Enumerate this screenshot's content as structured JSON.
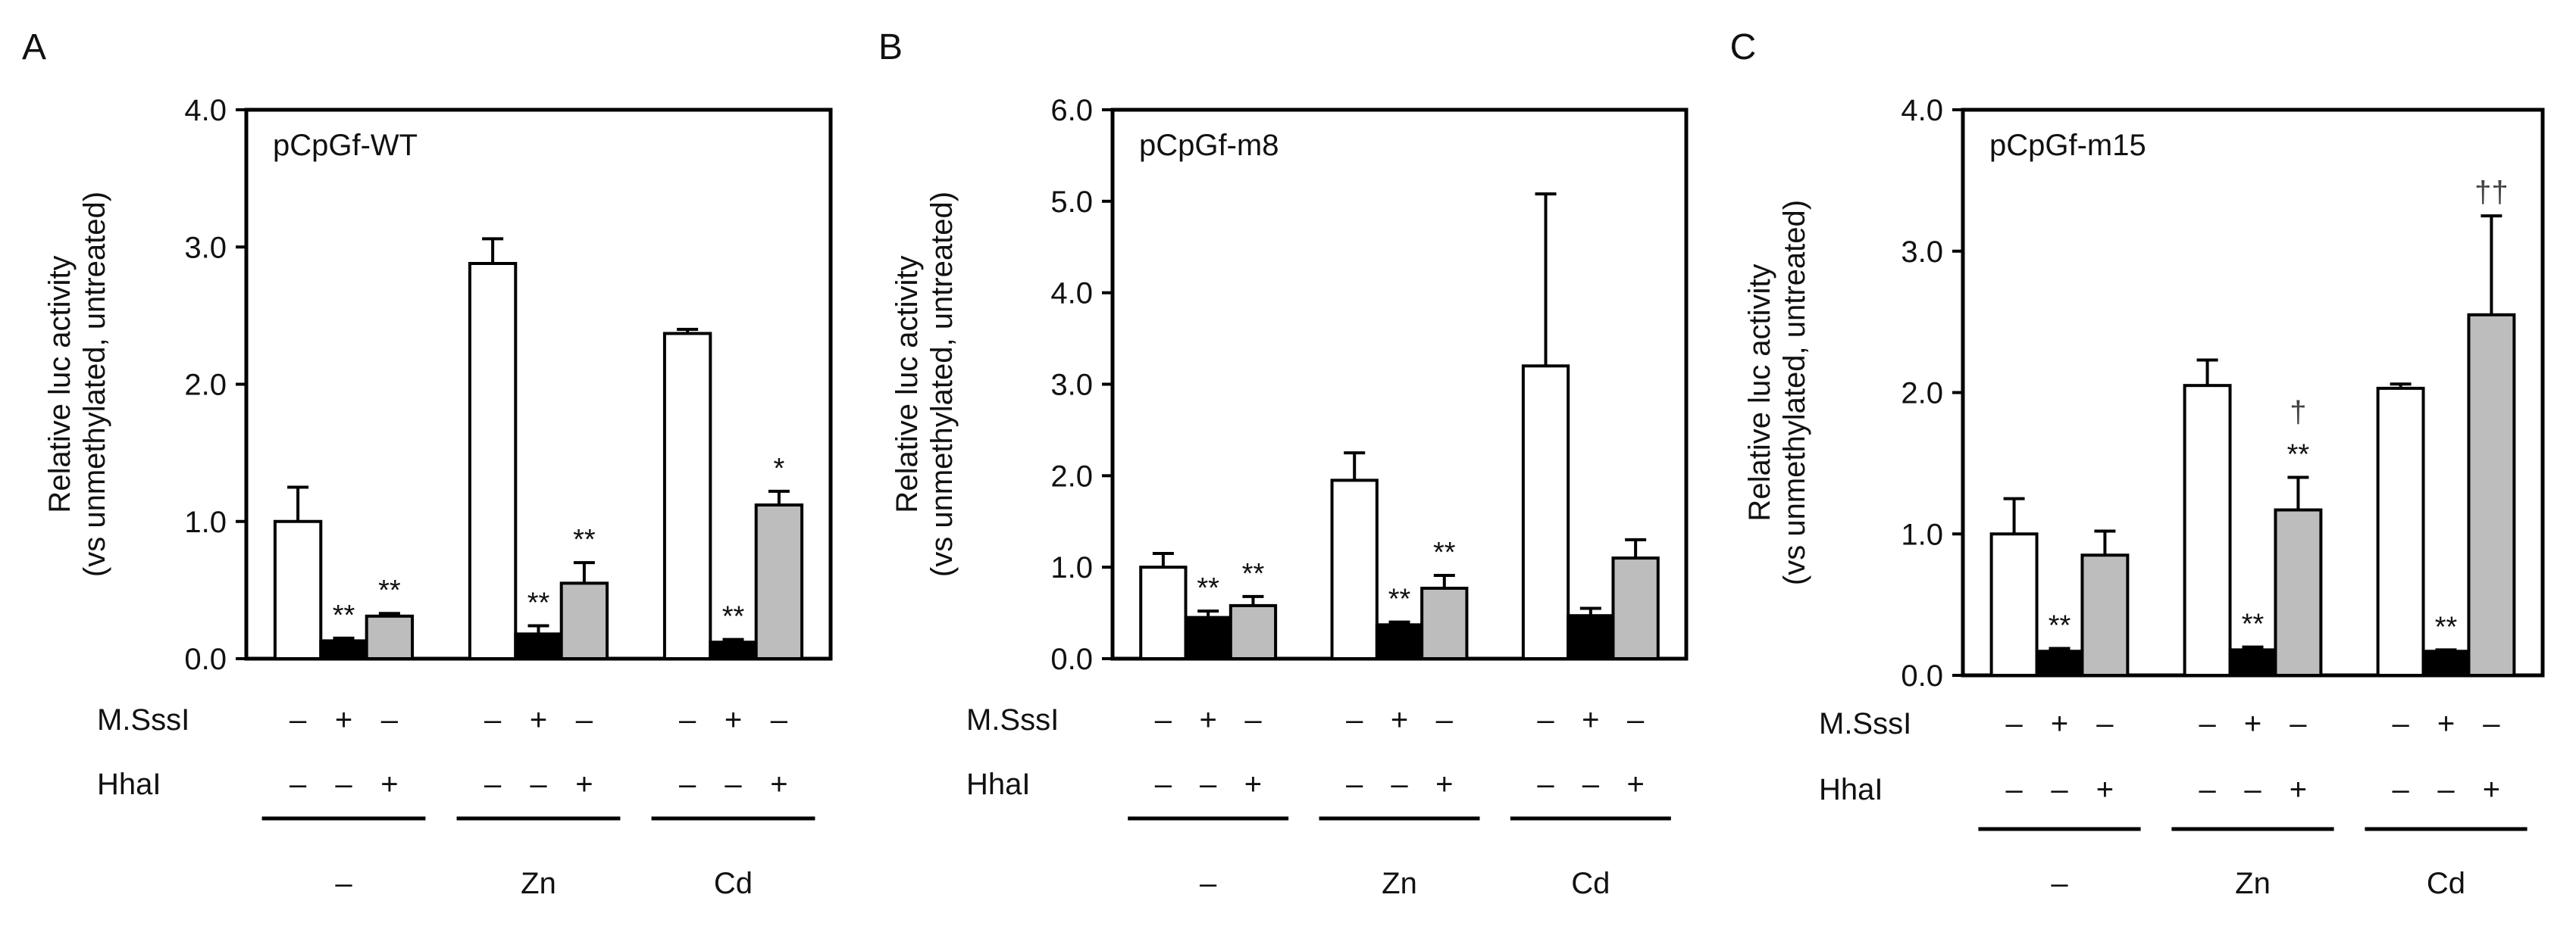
{
  "figure": {
    "background": "#ffffff"
  },
  "chart_data": [
    {
      "panel_letter": "A",
      "type": "bar",
      "title": "pCpGf-WT",
      "ylabel_line1": "Relative luc activity",
      "ylabel_line2": "(vs unmethylated, untreated)",
      "ylim": [
        0,
        4.0
      ],
      "yticks": [
        "0.0",
        "1.0",
        "2.0",
        "3.0",
        "4.0"
      ],
      "groups": [
        "–",
        "Zn",
        "Cd"
      ],
      "series": [
        {
          "name": "untreated",
          "color": "#ffffff",
          "values": [
            1.0,
            2.88,
            2.37
          ],
          "errors": [
            0.25,
            0.18,
            0.03
          ],
          "annotations": [
            "",
            "",
            ""
          ]
        },
        {
          "name": "M.SssI",
          "color": "#000000",
          "values": [
            0.13,
            0.18,
            0.12
          ],
          "errors": [
            0.02,
            0.06,
            0.02
          ],
          "annotations": [
            "**",
            "**",
            "**"
          ]
        },
        {
          "name": "HhaI",
          "color": "#bdbdbd",
          "values": [
            0.31,
            0.55,
            1.12
          ],
          "errors": [
            0.02,
            0.15,
            0.1
          ],
          "annotations": [
            "**",
            "**",
            "*"
          ]
        }
      ],
      "treatment_rows": [
        {
          "label": "M.SssI",
          "symbols": [
            "–",
            "+",
            "–"
          ]
        },
        {
          "label": "HhaI",
          "symbols": [
            "–",
            "–",
            "+"
          ]
        }
      ]
    },
    {
      "panel_letter": "B",
      "type": "bar",
      "title": "pCpGf-m8",
      "ylabel_line1": "Relative luc activity",
      "ylabel_line2": "(vs unmethylated, untreated)",
      "ylim": [
        0,
        6.0
      ],
      "yticks": [
        "0.0",
        "1.0",
        "2.0",
        "3.0",
        "4.0",
        "5.0",
        "6.0"
      ],
      "groups": [
        "–",
        "Zn",
        "Cd"
      ],
      "series": [
        {
          "name": "untreated",
          "color": "#ffffff",
          "values": [
            1.0,
            1.95,
            3.2
          ],
          "errors": [
            0.15,
            0.3,
            1.88
          ],
          "annotations": [
            "",
            "",
            ""
          ]
        },
        {
          "name": "M.SssI",
          "color": "#000000",
          "values": [
            0.45,
            0.37,
            0.47
          ],
          "errors": [
            0.07,
            0.03,
            0.08
          ],
          "annotations": [
            "**",
            "**",
            ""
          ]
        },
        {
          "name": "HhaI",
          "color": "#bdbdbd",
          "values": [
            0.58,
            0.77,
            1.1
          ],
          "errors": [
            0.1,
            0.14,
            0.2
          ],
          "annotations": [
            "**",
            "**",
            ""
          ]
        }
      ],
      "treatment_rows": [
        {
          "label": "M.SssI",
          "symbols": [
            "–",
            "+",
            "–"
          ]
        },
        {
          "label": "HhaI",
          "symbols": [
            "–",
            "–",
            "+"
          ]
        }
      ]
    },
    {
      "panel_letter": "C",
      "type": "bar",
      "title": "pCpGf-m15",
      "ylabel_line1": "Relative luc activity",
      "ylabel_line2": "(vs unmethylated, untreated)",
      "ylim": [
        0,
        4.0
      ],
      "yticks": [
        "0.0",
        "1.0",
        "2.0",
        "3.0",
        "4.0"
      ],
      "groups": [
        "–",
        "Zn",
        "Cd"
      ],
      "series": [
        {
          "name": "untreated",
          "color": "#ffffff",
          "values": [
            1.0,
            2.05,
            2.03
          ],
          "errors": [
            0.25,
            0.18,
            0.03
          ],
          "annotations": [
            "",
            "",
            ""
          ]
        },
        {
          "name": "M.SssI",
          "color": "#000000",
          "values": [
            0.17,
            0.18,
            0.17
          ],
          "errors": [
            0.02,
            0.02,
            0.01
          ],
          "annotations": [
            "**",
            "**",
            "**"
          ]
        },
        {
          "name": "HhaI",
          "color": "#bdbdbd",
          "values": [
            0.85,
            1.17,
            2.55
          ],
          "errors": [
            0.17,
            0.23,
            0.7
          ],
          "annotations": [
            "",
            "†\n**",
            "††"
          ]
        }
      ],
      "treatment_rows": [
        {
          "label": "M.SssI",
          "symbols": [
            "–",
            "+",
            "–"
          ]
        },
        {
          "label": "HhaI",
          "symbols": [
            "–",
            "–",
            "+"
          ]
        }
      ]
    }
  ]
}
